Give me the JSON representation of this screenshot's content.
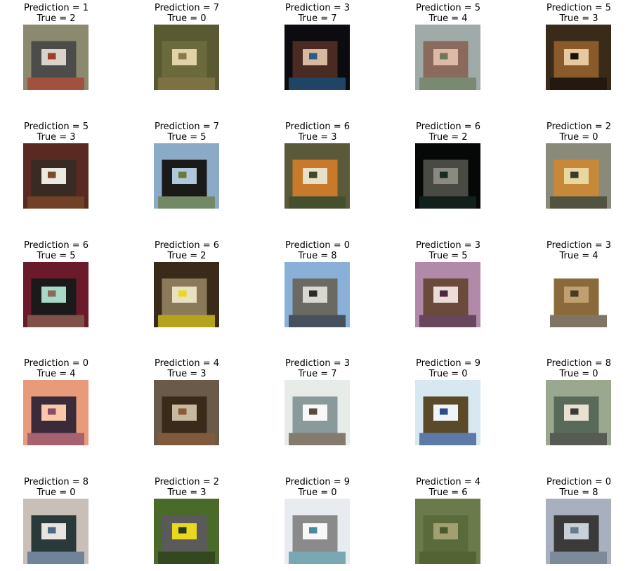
{
  "grid": [
    {
      "prediction": "Prediction = 1",
      "truth": "True = 2",
      "colors": {
        "bg": "#8c8a6e",
        "mid": "#4c4c4a",
        "hi": "#d8d4cc",
        "accent": "#a83a2a"
      }
    },
    {
      "prediction": "Prediction = 7",
      "truth": "True = 0",
      "colors": {
        "bg": "#5a5a32",
        "mid": "#6b6a3c",
        "hi": "#e2d2a8",
        "accent": "#8a7a4a"
      }
    },
    {
      "prediction": "Prediction = 3",
      "truth": "True = 7",
      "colors": {
        "bg": "#0c0c10",
        "mid": "#4a2a22",
        "hi": "#d8b8a0",
        "accent": "#2a5c8a"
      }
    },
    {
      "prediction": "Prediction = 5",
      "truth": "True = 4",
      "colors": {
        "bg": "#a0aaa8",
        "mid": "#8a6a5c",
        "hi": "#e0b8a8",
        "accent": "#6a7a5a"
      }
    },
    {
      "prediction": "Prediction = 5",
      "truth": "True = 3",
      "colors": {
        "bg": "#3a2a1a",
        "mid": "#8a5a2a",
        "hi": "#e8c8a0",
        "accent": "#1a120a"
      }
    },
    {
      "prediction": "Prediction = 5",
      "truth": "True = 3",
      "colors": {
        "bg": "#5a2a22",
        "mid": "#3a2a24",
        "hi": "#ece8e2",
        "accent": "#7a4a2a"
      }
    },
    {
      "prediction": "Prediction = 7",
      "truth": "True = 5",
      "colors": {
        "bg": "#8aaac8",
        "mid": "#1a1a18",
        "hi": "#b0c8dc",
        "accent": "#6a7a3a"
      }
    },
    {
      "prediction": "Prediction = 6",
      "truth": "True = 3",
      "colors": {
        "bg": "#5a5a3a",
        "mid": "#c87a2a",
        "hi": "#e8e0c8",
        "accent": "#3a4a2a"
      }
    },
    {
      "prediction": "Prediction = 6",
      "truth": "True = 2",
      "colors": {
        "bg": "#060808",
        "mid": "#4a4a44",
        "hi": "#8a8a80",
        "accent": "#1a2a22"
      }
    },
    {
      "prediction": "Prediction = 2",
      "truth": "True = 0",
      "colors": {
        "bg": "#8a8a7a",
        "mid": "#c8883a",
        "hi": "#e8d8a0",
        "accent": "#3a3a2a"
      }
    },
    {
      "prediction": "Prediction = 6",
      "truth": "True = 5",
      "colors": {
        "bg": "#6a1a2a",
        "mid": "#1a1a1a",
        "hi": "#a8d8c8",
        "accent": "#8a6a5a"
      }
    },
    {
      "prediction": "Prediction = 6",
      "truth": "True = 2",
      "colors": {
        "bg": "#3a2a1a",
        "mid": "#8a7a5a",
        "hi": "#e8e0c0",
        "accent": "#e8d820"
      }
    },
    {
      "prediction": "Prediction = 0",
      "truth": "True = 8",
      "colors": {
        "bg": "#8ab0d8",
        "mid": "#6a6a62",
        "hi": "#d8d8d0",
        "accent": "#2a2a2a"
      }
    },
    {
      "prediction": "Prediction = 3",
      "truth": "True = 5",
      "colors": {
        "bg": "#b08aa8",
        "mid": "#6a4a3a",
        "hi": "#ecdcd8",
        "accent": "#4a2a3a"
      }
    },
    {
      "prediction": "Prediction = 3",
      "truth": "True = 4",
      "colors": {
        "bg": "#ffffff",
        "mid": "#8a6a3a",
        "hi": "#c0a070",
        "accent": "#4a3a22"
      }
    },
    {
      "prediction": "Prediction = 0",
      "truth": "True = 4",
      "colors": {
        "bg": "#e89a7a",
        "mid": "#3a2a3a",
        "hi": "#f8c8a8",
        "accent": "#8a4a6a"
      }
    },
    {
      "prediction": "Prediction = 4",
      "truth": "True = 3",
      "colors": {
        "bg": "#6a5a4a",
        "mid": "#3a2a1a",
        "hi": "#c8b8a0",
        "accent": "#8a5a3a"
      }
    },
    {
      "prediction": "Prediction = 3",
      "truth": "True = 7",
      "colors": {
        "bg": "#e8ece8",
        "mid": "#8a9a9a",
        "hi": "#f8f8f8",
        "accent": "#5a4a3a"
      }
    },
    {
      "prediction": "Prediction = 9",
      "truth": "True = 0",
      "colors": {
        "bg": "#d8e8f0",
        "mid": "#5a4a2a",
        "hi": "#f0f4f8",
        "accent": "#2a4a8a"
      }
    },
    {
      "prediction": "Prediction = 8",
      "truth": "True = 0",
      "colors": {
        "bg": "#9aa890",
        "mid": "#5a6a5a",
        "hi": "#e8e0d0",
        "accent": "#3a3a3a"
      }
    },
    {
      "prediction": "Prediction = 8",
      "truth": "True = 0",
      "colors": {
        "bg": "#c8c0b8",
        "mid": "#2a3a3a",
        "hi": "#e8e4e0",
        "accent": "#4a6a8a"
      }
    },
    {
      "prediction": "Prediction = 2",
      "truth": "True = 3",
      "colors": {
        "bg": "#4a6a2a",
        "mid": "#5a5a5a",
        "hi": "#e8d820",
        "accent": "#2a3a1a"
      }
    },
    {
      "prediction": "Prediction = 9",
      "truth": "True = 0",
      "colors": {
        "bg": "#e8ecf0",
        "mid": "#8a8a8a",
        "hi": "#f8f8f8",
        "accent": "#4a8a9a"
      }
    },
    {
      "prediction": "Prediction = 4",
      "truth": "True = 6",
      "colors": {
        "bg": "#6a7a4a",
        "mid": "#5a6a3a",
        "hi": "#a0a070",
        "accent": "#4a5a2a"
      }
    },
    {
      "prediction": "Prediction = 0",
      "truth": "True = 8",
      "colors": {
        "bg": "#a8b0c0",
        "mid": "#3a3a3a",
        "hi": "#c8d0d8",
        "accent": "#6a7a8a"
      }
    }
  ]
}
